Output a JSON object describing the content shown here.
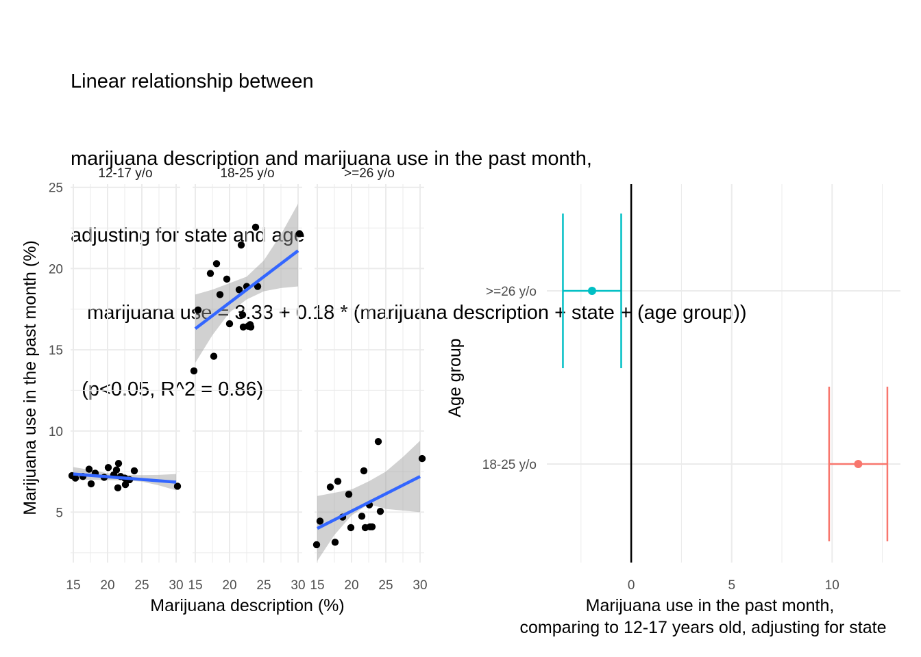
{
  "title_lines": [
    "Linear relationship between",
    "marijuana description and marijuana use in the past month,",
    "adjusting for state and age",
    "   marijuana use = 3.33 + 0.18 * (marijuana description + state + (age group))",
    "  (p<0.05, R^2 = 0.86)"
  ],
  "chart_data": [
    {
      "type": "scatter",
      "xlabel": "Marijuana description (%)",
      "ylabel": "Marijuana use in the past month (%)",
      "xlim": [
        14.6,
        30.6
      ],
      "ylim": [
        1.9,
        25.2
      ],
      "x_ticks": [
        15,
        20,
        25,
        30
      ],
      "x_tick_labels": [
        "15",
        "20",
        "25",
        "30"
      ],
      "y_ticks": [
        5,
        10,
        15,
        20,
        25
      ],
      "y_tick_labels": [
        "5",
        "10",
        "15",
        "20",
        "25"
      ],
      "grid": true,
      "facets": [
        {
          "label": "12-17 y/o",
          "points": [
            [
              14.8,
              7.25
            ],
            [
              15.3,
              7.1
            ],
            [
              16.4,
              7.2
            ],
            [
              17.3,
              7.65
            ],
            [
              17.6,
              6.75
            ],
            [
              18.2,
              7.4
            ],
            [
              19.5,
              7.15
            ],
            [
              20.1,
              7.75
            ],
            [
              20.9,
              7.3
            ],
            [
              21.3,
              7.6
            ],
            [
              21.6,
              8.0
            ],
            [
              21.9,
              7.2
            ],
            [
              21.5,
              6.5
            ],
            [
              22.6,
              6.7
            ],
            [
              23.2,
              7.0
            ],
            [
              23.9,
              7.55
            ],
            [
              22.5,
              7.1
            ],
            [
              30.2,
              6.6
            ]
          ],
          "fit": {
            "x": [
              15,
              30
            ],
            "y": [
              7.35,
              6.85
            ]
          },
          "ci": {
            "x": [
              15,
              17.5,
              20,
              22.5,
              25,
              27.5,
              30
            ],
            "lower": [
              6.98,
              7.0,
              6.98,
              6.95,
              6.88,
              6.65,
              6.35
            ],
            "upper": [
              7.78,
              7.6,
              7.4,
              7.3,
              7.28,
              7.3,
              7.35
            ]
          }
        },
        {
          "label": "18-25 y/o",
          "points": [
            [
              14.8,
              13.7
            ],
            [
              15.4,
              17.45
            ],
            [
              17.2,
              19.7
            ],
            [
              17.7,
              14.6
            ],
            [
              18.1,
              20.3
            ],
            [
              18.6,
              18.4
            ],
            [
              19.6,
              19.35
            ],
            [
              20.0,
              16.6
            ],
            [
              21.4,
              18.7
            ],
            [
              21.7,
              21.45
            ],
            [
              21.9,
              17.15
            ],
            [
              22.0,
              16.4
            ],
            [
              22.5,
              18.9
            ],
            [
              22.7,
              16.45
            ],
            [
              23.0,
              16.55
            ],
            [
              23.1,
              16.4
            ],
            [
              23.8,
              22.55
            ],
            [
              24.1,
              18.9
            ],
            [
              30.2,
              22.15
            ]
          ],
          "fit": {
            "x": [
              15,
              30
            ],
            "y": [
              16.3,
              21.1
            ]
          },
          "ci": {
            "x": [
              15,
              17.5,
              20,
              22.5,
              25,
              27.5,
              30
            ],
            "lower": [
              14.2,
              15.9,
              17.3,
              18.1,
              18.6,
              18.8,
              18.9
            ],
            "upper": [
              18.4,
              18.7,
              19.1,
              19.5,
              20.5,
              22.1,
              24.0
            ]
          }
        },
        {
          "label": ">=26 y/o",
          "points": [
            [
              14.9,
              3.0
            ],
            [
              15.4,
              4.45
            ],
            [
              16.9,
              6.55
            ],
            [
              17.6,
              3.15
            ],
            [
              18.0,
              6.9
            ],
            [
              18.7,
              4.7
            ],
            [
              19.6,
              6.1
            ],
            [
              19.9,
              4.05
            ],
            [
              21.5,
              4.75
            ],
            [
              21.8,
              7.55
            ],
            [
              22.0,
              4.05
            ],
            [
              22.6,
              5.45
            ],
            [
              22.7,
              4.1
            ],
            [
              23.0,
              4.1
            ],
            [
              23.9,
              9.35
            ],
            [
              24.2,
              5.05
            ],
            [
              30.3,
              8.3
            ]
          ],
          "fit": {
            "x": [
              15,
              30
            ],
            "y": [
              4.0,
              7.2
            ]
          },
          "ci": {
            "x": [
              15,
              17.5,
              20,
              22.5,
              25,
              27.5,
              30
            ],
            "lower": [
              2.0,
              3.6,
              4.8,
              5.5,
              5.2,
              5.1,
              5.0
            ],
            "upper": [
              6.0,
              6.2,
              6.4,
              6.9,
              7.5,
              8.4,
              9.4
            ]
          }
        }
      ]
    },
    {
      "type": "errorbar",
      "xlabel_lines": [
        "Marijuana use in the past month,",
        "comparing to 12-17 years old, adjusting for state"
      ],
      "ylabel": "Age group",
      "xlim": [
        -4.2,
        13.4
      ],
      "x_ticks": [
        0,
        5,
        10
      ],
      "x_tick_labels": [
        "0",
        "5",
        "10"
      ],
      "x_minor": [
        -2.5,
        2.5,
        7.5,
        12.5
      ],
      "reference_line": 0,
      "grid": true,
      "categories": [
        "18-25 y/o",
        ">=26 y/o"
      ],
      "estimates": [
        {
          "group": ">=26 y/o",
          "estimate": -1.95,
          "lower": -3.4,
          "upper": -0.5,
          "color": "#00BFC4"
        },
        {
          "group": "18-25 y/o",
          "estimate": 11.3,
          "lower": 9.85,
          "upper": 12.75,
          "color": "#F8766D"
        }
      ],
      "colors": {
        "fit_line": "#3366FF",
        "ci_band": "#999999",
        "points": "#000000",
        "ref_line": "#000000"
      }
    }
  ]
}
